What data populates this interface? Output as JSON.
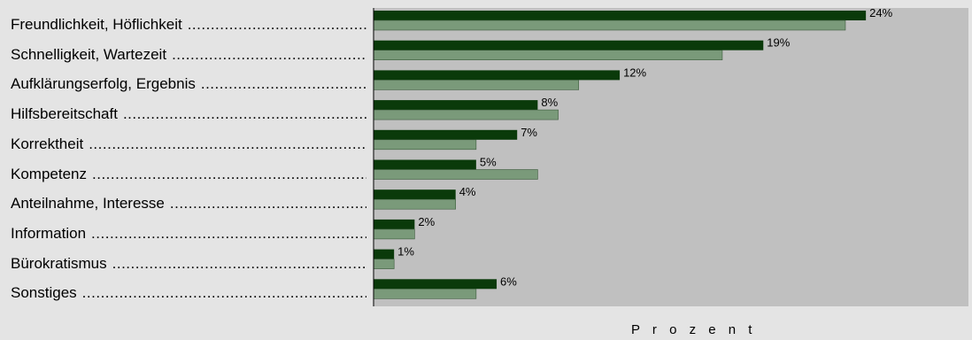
{
  "chart_data": {
    "type": "bar",
    "orientation": "horizontal",
    "categories": [
      "Freundlichkeit, Höflichkeit",
      "Schnelligkeit, Wartezeit",
      "Aufklärungserfolg, Ergebnis",
      "Hilfsbereitschaft",
      "Korrektheit",
      "Kompetenz",
      "Anteilnahme, Interesse",
      "Information",
      "Bürokratismus",
      "Sonstiges"
    ],
    "series": [
      {
        "values": [
          24,
          19,
          12,
          8,
          7,
          5,
          4,
          2,
          1,
          6
        ],
        "labels": [
          "24%",
          "19%",
          "12%",
          "8%",
          "7%",
          "5%",
          "4%",
          "2%",
          "1%",
          "6%"
        ]
      },
      {
        "values": [
          23,
          17,
          10,
          9,
          5,
          8,
          4,
          2,
          1,
          5
        ]
      }
    ],
    "xlabel": "P r o z e n t",
    "ylabel": "",
    "xlim": [
      0,
      29
    ],
    "grid": false,
    "colors": {
      "series_dark": "#0a3a0a",
      "series_light": "#7a9a7a",
      "plot_background": "#c0c0c0",
      "page_background": "#e4e4e4"
    }
  }
}
